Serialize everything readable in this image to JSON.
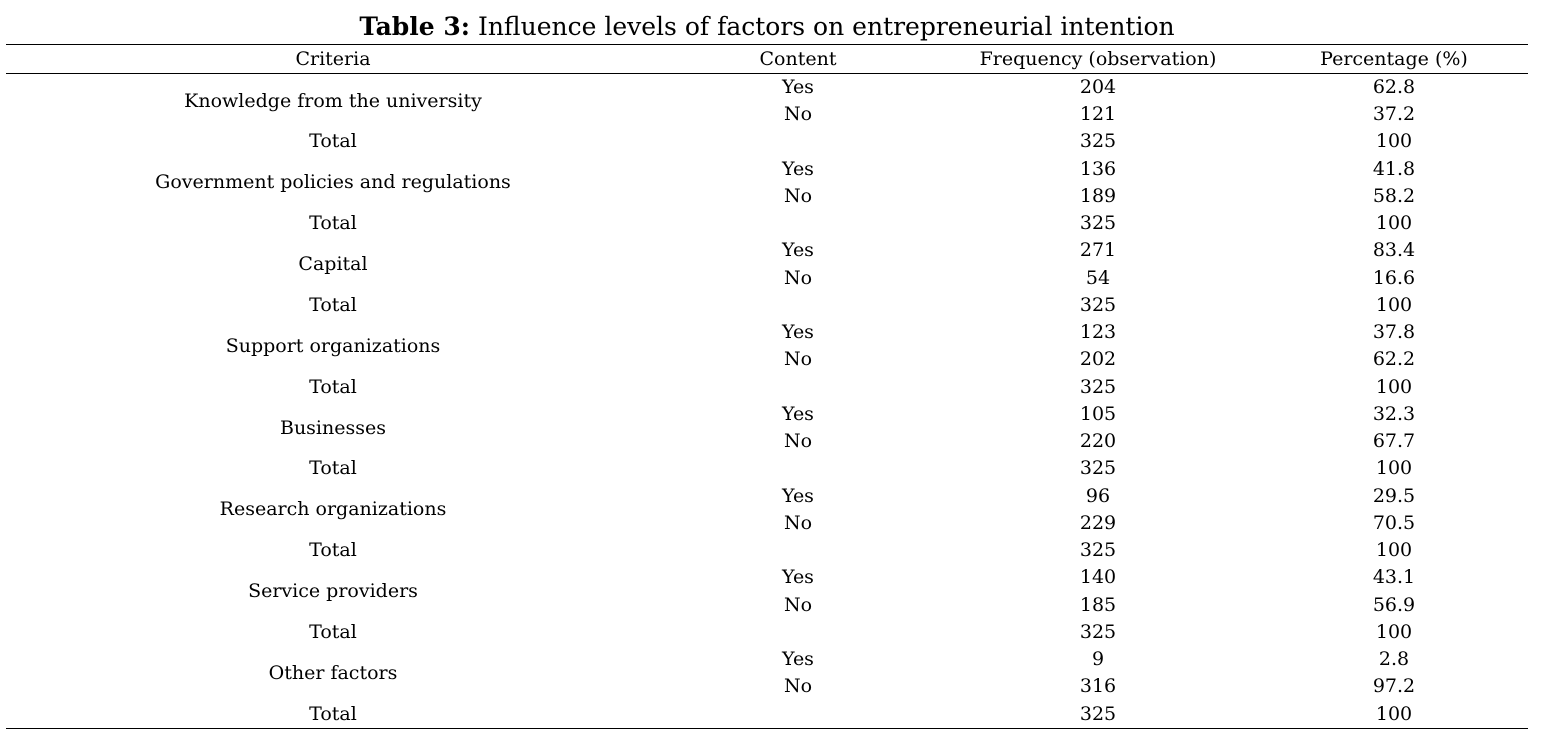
{
  "caption": {
    "label": "Table 3:",
    "text": "Influence levels of factors on entrepreneurial intention"
  },
  "columns": [
    "Criteria",
    "Content",
    "Frequency (observation)",
    "Percentage (%)"
  ],
  "groups": [
    {
      "criteria": "Knowledge from the university",
      "rows": [
        {
          "content": "Yes",
          "frequency": "204",
          "percentage": "62.8"
        },
        {
          "content": "No",
          "frequency": "121",
          "percentage": "37.2"
        }
      ],
      "total": {
        "label": "Total",
        "frequency": "325",
        "percentage": "100"
      }
    },
    {
      "criteria": "Government policies and regulations",
      "rows": [
        {
          "content": "Yes",
          "frequency": "136",
          "percentage": "41.8"
        },
        {
          "content": "No",
          "frequency": "189",
          "percentage": "58.2"
        }
      ],
      "total": {
        "label": "Total",
        "frequency": "325",
        "percentage": "100"
      }
    },
    {
      "criteria": "Capital",
      "rows": [
        {
          "content": "Yes",
          "frequency": "271",
          "percentage": "83.4"
        },
        {
          "content": "No",
          "frequency": "54",
          "percentage": "16.6"
        }
      ],
      "total": {
        "label": "Total",
        "frequency": "325",
        "percentage": "100"
      }
    },
    {
      "criteria": "Support organizations",
      "rows": [
        {
          "content": "Yes",
          "frequency": "123",
          "percentage": "37.8"
        },
        {
          "content": "No",
          "frequency": "202",
          "percentage": "62.2"
        }
      ],
      "total": {
        "label": "Total",
        "frequency": "325",
        "percentage": "100"
      }
    },
    {
      "criteria": "Businesses",
      "rows": [
        {
          "content": "Yes",
          "frequency": "105",
          "percentage": "32.3"
        },
        {
          "content": "No",
          "frequency": "220",
          "percentage": "67.7"
        }
      ],
      "total": {
        "label": "Total",
        "frequency": "325",
        "percentage": "100"
      }
    },
    {
      "criteria": "Research organizations",
      "rows": [
        {
          "content": "Yes",
          "frequency": "96",
          "percentage": "29.5"
        },
        {
          "content": "No",
          "frequency": "229",
          "percentage": "70.5"
        }
      ],
      "total": {
        "label": "Total",
        "frequency": "325",
        "percentage": "100"
      }
    },
    {
      "criteria": "Service providers",
      "rows": [
        {
          "content": "Yes",
          "frequency": "140",
          "percentage": "43.1"
        },
        {
          "content": "No",
          "frequency": "185",
          "percentage": "56.9"
        }
      ],
      "total": {
        "label": "Total",
        "frequency": "325",
        "percentage": "100"
      }
    },
    {
      "criteria": "Other factors",
      "rows": [
        {
          "content": "Yes",
          "frequency": "9",
          "percentage": "2.8"
        },
        {
          "content": "No",
          "frequency": "316",
          "percentage": "97.2"
        }
      ],
      "total": {
        "label": "Total",
        "frequency": "325",
        "percentage": "100"
      }
    }
  ]
}
